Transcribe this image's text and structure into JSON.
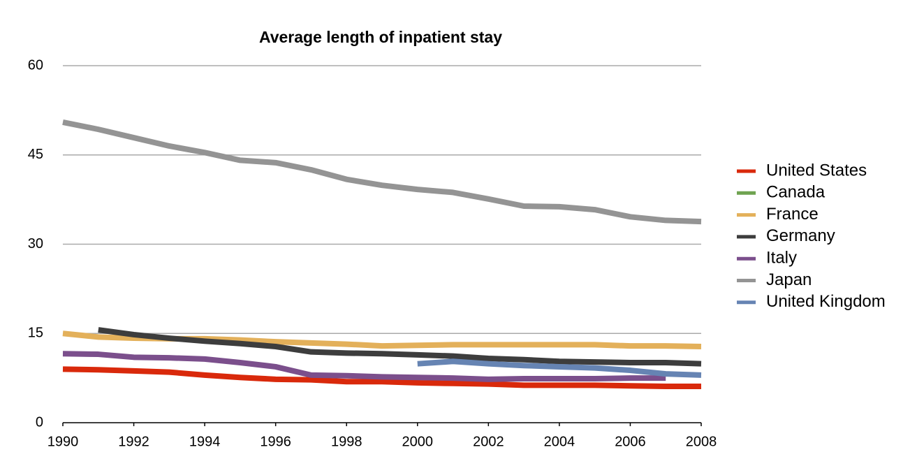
{
  "chart_data": {
    "type": "line",
    "title": "Average length of inpatient stay",
    "x": [
      1990,
      1991,
      1992,
      1993,
      1994,
      1995,
      1996,
      1997,
      1998,
      1999,
      2000,
      2001,
      2002,
      2003,
      2004,
      2005,
      2006,
      2007,
      2008
    ],
    "xlim": [
      1990,
      2008
    ],
    "xticks": [
      1990,
      1992,
      1994,
      1996,
      1998,
      2000,
      2002,
      2004,
      2006,
      2008
    ],
    "ylim": [
      0,
      60
    ],
    "yticks": [
      0,
      15,
      30,
      45,
      60
    ],
    "grid": true,
    "legend": "right",
    "series": [
      {
        "name": "United States",
        "color": "#d9290b",
        "values": [
          9.0,
          8.9,
          8.7,
          8.5,
          8.0,
          7.6,
          7.3,
          7.2,
          6.9,
          6.9,
          6.7,
          6.6,
          6.5,
          6.3,
          6.3,
          6.3,
          6.2,
          6.1,
          6.1
        ]
      },
      {
        "name": "Canada",
        "color": "#6fa350",
        "values": [
          null,
          null,
          null,
          null,
          null,
          null,
          null,
          null,
          null,
          null,
          null,
          null,
          null,
          null,
          null,
          null,
          null,
          null,
          null
        ]
      },
      {
        "name": "France",
        "color": "#e3b05a",
        "values": [
          15.0,
          14.4,
          14.2,
          14.1,
          14.1,
          13.9,
          13.6,
          13.4,
          13.2,
          12.9,
          13.0,
          13.1,
          13.1,
          13.1,
          13.1,
          13.1,
          12.9,
          12.9,
          12.8
        ]
      },
      {
        "name": "Germany",
        "color": "#3d3d3d",
        "values": [
          null,
          15.6,
          14.8,
          14.2,
          13.7,
          13.3,
          12.8,
          11.9,
          11.7,
          11.6,
          11.4,
          11.2,
          10.8,
          10.6,
          10.3,
          10.2,
          10.1,
          10.1,
          9.9
        ]
      },
      {
        "name": "Italy",
        "color": "#7b4f8c",
        "values": [
          11.6,
          11.5,
          11.0,
          10.9,
          10.7,
          10.1,
          9.4,
          8.0,
          7.9,
          7.7,
          7.6,
          7.5,
          7.3,
          7.4,
          7.4,
          7.4,
          7.5,
          7.5,
          null
        ]
      },
      {
        "name": "Japan",
        "color": "#949494",
        "values": [
          50.5,
          49.3,
          47.9,
          46.5,
          45.4,
          44.1,
          43.7,
          42.5,
          40.9,
          39.9,
          39.2,
          38.7,
          37.6,
          36.4,
          36.3,
          35.8,
          34.6,
          34.0,
          33.8
        ]
      },
      {
        "name": "United Kingdom",
        "color": "#6684b3",
        "values": [
          null,
          null,
          null,
          null,
          null,
          null,
          null,
          null,
          null,
          null,
          9.9,
          10.3,
          9.9,
          9.6,
          9.4,
          9.2,
          8.8,
          8.2,
          8.0
        ]
      }
    ]
  }
}
